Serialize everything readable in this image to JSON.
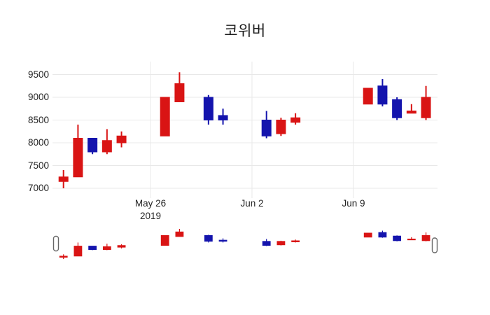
{
  "title": "코위버",
  "colors": {
    "up": "#d91414",
    "down": "#1414ad",
    "grid": "#e8e8e8",
    "text": "#242424",
    "title_text": "#1c1c1c",
    "background": "#ffffff",
    "handle_fill": "#ffffff",
    "handle_border": "#666666"
  },
  "chart_data": {
    "type": "candlestick",
    "title": "코위버",
    "legend": "none",
    "grid": "on",
    "x_axis": {
      "type": "date",
      "ticks": [
        {
          "label": "May 26",
          "sub": "2019",
          "day": 6
        },
        {
          "label": "Jun 2",
          "day": 13
        },
        {
          "label": "Jun 9",
          "day": 20
        }
      ]
    },
    "y_axis": {
      "ticks": [
        "9500",
        "9000",
        "8500",
        "8000",
        "7500",
        "7000"
      ],
      "tick_values": [
        9500,
        9000,
        8500,
        8000,
        7500,
        7000
      ],
      "range": [
        6900,
        9650
      ]
    },
    "series": [
      {
        "date": "May 20",
        "day": 0,
        "open": 7150,
        "high": 7400,
        "low": 7000,
        "close": 7250
      },
      {
        "date": "May 21",
        "day": 1,
        "open": 7250,
        "high": 8400,
        "low": 7250,
        "close": 8100
      },
      {
        "date": "May 22",
        "day": 2,
        "open": 8100,
        "high": 8100,
        "low": 7750,
        "close": 7800
      },
      {
        "date": "May 23",
        "day": 3,
        "open": 7800,
        "high": 8300,
        "low": 7750,
        "close": 8050
      },
      {
        "date": "May 24",
        "day": 4,
        "open": 8000,
        "high": 8250,
        "low": 7900,
        "close": 8150
      },
      {
        "date": "May 27",
        "day": 7,
        "open": 8150,
        "high": 9000,
        "low": 8150,
        "close": 9000
      },
      {
        "date": "May 28",
        "day": 8,
        "open": 8900,
        "high": 9550,
        "low": 8900,
        "close": 9300
      },
      {
        "date": "May 30",
        "day": 10,
        "open": 9000,
        "high": 9050,
        "low": 8400,
        "close": 8500
      },
      {
        "date": "May 31",
        "day": 11,
        "open": 8600,
        "high": 8750,
        "low": 8400,
        "close": 8500
      },
      {
        "date": "Jun 3",
        "day": 14,
        "open": 8500,
        "high": 8700,
        "low": 8100,
        "close": 8150
      },
      {
        "date": "Jun 4",
        "day": 15,
        "open": 8200,
        "high": 8550,
        "low": 8150,
        "close": 8500
      },
      {
        "date": "Jun 5",
        "day": 16,
        "open": 8450,
        "high": 8650,
        "low": 8400,
        "close": 8550
      },
      {
        "date": "Jun 10",
        "day": 21,
        "open": 8850,
        "high": 9200,
        "low": 8850,
        "close": 9200
      },
      {
        "date": "Jun 11",
        "day": 22,
        "open": 9250,
        "high": 9400,
        "low": 8800,
        "close": 8850
      },
      {
        "date": "Jun 12",
        "day": 23,
        "open": 8950,
        "high": 9000,
        "low": 8500,
        "close": 8550
      },
      {
        "date": "Jun 13",
        "day": 24,
        "open": 8650,
        "high": 8850,
        "low": 8650,
        "close": 8700
      },
      {
        "date": "Jun 14",
        "day": 25,
        "open": 8550,
        "high": 9250,
        "low": 8500,
        "close": 9000
      }
    ],
    "rangeslider": {
      "visible": true
    }
  }
}
